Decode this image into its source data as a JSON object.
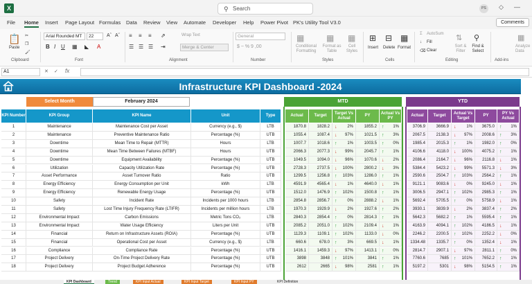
{
  "search": {
    "placeholder": "Search"
  },
  "user_initials": "PS",
  "menu": [
    "File",
    "Home",
    "Insert",
    "Page Layout",
    "Formulas",
    "Data",
    "Review",
    "View",
    "Automate",
    "Developer",
    "Help",
    "Power Pivot",
    "PK's Utility Tool V3.0"
  ],
  "comments_label": "Comments",
  "ribbon": {
    "font_name": "Arial Rounded MT",
    "font_size": "22",
    "number_format": "General",
    "wrap_text": "Wrap Text",
    "merge_center": "Merge & Center",
    "paste": "Paste",
    "autosum": "AutoSum",
    "fill": "Fill",
    "clear": "Clear",
    "sort_filter": "Sort & Filter",
    "find_select": "Find & Select",
    "insert": "Insert",
    "delete": "Delete",
    "format": "Format",
    "cond_format": "Conditional Formatting",
    "format_table": "Format as Table",
    "cell_styles": "Cell Styles",
    "analyze": "Analyze Data",
    "groups": [
      "Clipboard",
      "Font",
      "Alignment",
      "Number",
      "Styles",
      "Cells",
      "Editing",
      "Add-ins"
    ]
  },
  "name_box": "A1",
  "dashboard": {
    "title": "Infrastructure KPI Dashboard -2024",
    "select_month_label": "Select Month",
    "selected_month": "February 2024",
    "mtd_label": "MTD",
    "ytd_label": "YTD",
    "headers": {
      "kpi_number": "KPI Number",
      "kpi_group": "KPI Group",
      "kpi_name": "KPI Name",
      "unit": "Unit",
      "type": "Type",
      "actual": "Actual",
      "target": "Target",
      "target_vs_actual": "Target Vs Actual",
      "py": "PY",
      "actual_vs_py": "Actual Vs PY",
      "py_vs_actual": "PY Vs Actual"
    },
    "rows": [
      {
        "num": "1",
        "group": "Maintenance",
        "name": "Maintenance Cost per Asset",
        "unit": "Currency (e.g., $)",
        "type": "LTB",
        "m_actual": "1870.8",
        "m_target": "1828.2",
        "m_tva": "2%",
        "m_tva_dir": "down",
        "m_py": "1855.2",
        "m_avp": "1%",
        "m_avp_dir": "up",
        "y_actual": "3706.9",
        "y_target": "3666.9",
        "y_tva": "1%",
        "y_tva_dir": "down",
        "y_py": "3675.0",
        "y_pva": "1%",
        "y_pva_dir": "up"
      },
      {
        "num": "2",
        "group": "Maintenance",
        "name": "Preventive Maintenance Ratio",
        "unit": "Percentage (%)",
        "type": "UTB",
        "m_actual": "1055.4",
        "m_target": "1087.4",
        "m_tva": "97%",
        "m_tva_dir": "down",
        "m_py": "1021.5",
        "m_avp": "3%",
        "m_avp_dir": "up",
        "y_actual": "2067.5",
        "y_target": "2138.3",
        "y_tva": "97%",
        "y_tva_dir": "down",
        "y_py": "2008.6",
        "y_pva": "3%",
        "y_pva_dir": "up"
      },
      {
        "num": "3",
        "group": "Downtime",
        "name": "Mean Time to Repair (MTTR)",
        "unit": "Hours",
        "type": "LTB",
        "m_actual": "1007.7",
        "m_target": "1018.6",
        "m_tva": "1%",
        "m_tva_dir": "up",
        "m_py": "1003.5",
        "m_avp": "0%",
        "m_avp_dir": "up",
        "y_actual": "1985.4",
        "y_target": "2015.3",
        "y_tva": "1%",
        "y_tva_dir": "up",
        "y_py": "1982.0",
        "y_pva": "0%",
        "y_pva_dir": "up"
      },
      {
        "num": "4",
        "group": "Downtime",
        "name": "Mean Time Between Failures (MTBF)",
        "unit": "Hours",
        "type": "UTB",
        "m_actual": "2066.3",
        "m_target": "2077.3",
        "m_tva": "99%",
        "m_tva_dir": "down",
        "m_py": "2045.7",
        "m_avp": "1%",
        "m_avp_dir": "up",
        "y_actual": "4106.6",
        "y_target": "4118.0",
        "y_tva": "100%",
        "y_tva_dir": "down",
        "y_py": "4075.2",
        "y_pva": "1%",
        "y_pva_dir": "up"
      },
      {
        "num": "5",
        "group": "Downtime",
        "name": "Equipment Availability",
        "unit": "Percentage (%)",
        "type": "UTB",
        "m_actual": "1049.5",
        "m_target": "1094.0",
        "m_tva": "96%",
        "m_tva_dir": "down",
        "m_py": "1070.6",
        "m_avp": "2%",
        "m_avp_dir": "down",
        "y_actual": "2086.4",
        "y_target": "2164.7",
        "y_tva": "96%",
        "y_tva_dir": "down",
        "y_py": "2116.8",
        "y_pva": "1%",
        "y_pva_dir": "down"
      },
      {
        "num": "6",
        "group": "Utilization",
        "name": "Capacity Utilization Rate",
        "unit": "Percentage (%)",
        "type": "UTB",
        "m_actual": "2728.3",
        "m_target": "2737.5",
        "m_tva": "100%",
        "m_tva_dir": "down",
        "m_py": "2800.2",
        "m_avp": "3%",
        "m_avp_dir": "down",
        "y_actual": "5384.4",
        "y_target": "5423.2",
        "y_tva": "99%",
        "y_tva_dir": "down",
        "y_py": "5571.3",
        "y_pva": "3%",
        "y_pva_dir": "down"
      },
      {
        "num": "7",
        "group": "Asset Performance",
        "name": "Asset Turnover Ratio",
        "unit": "Ratio",
        "type": "UTB",
        "m_actual": "1299.5",
        "m_target": "1256.8",
        "m_tva": "103%",
        "m_tva_dir": "up",
        "m_py": "1286.0",
        "m_avp": "1%",
        "m_avp_dir": "up",
        "y_actual": "2590.6",
        "y_target": "2504.7",
        "y_tva": "103%",
        "y_tva_dir": "up",
        "y_py": "2564.2",
        "y_pva": "1%",
        "y_pva_dir": "up"
      },
      {
        "num": "8",
        "group": "Energy Efficiency",
        "name": "Energy Consumption per Unit",
        "unit": "kWh",
        "type": "LTB",
        "m_actual": "4591.9",
        "m_target": "4565.4",
        "m_tva": "1%",
        "m_tva_dir": "down",
        "m_py": "4640.0",
        "m_avp": "1%",
        "m_avp_dir": "down",
        "y_actual": "9121.1",
        "y_target": "9083.6",
        "y_tva": "0%",
        "y_tva_dir": "down",
        "y_py": "9245.0",
        "y_pva": "1%",
        "y_pva_dir": "down"
      },
      {
        "num": "9",
        "group": "Energy Efficiency",
        "name": "Renewable Energy Usage",
        "unit": "Percentage (%)",
        "type": "UTB",
        "m_actual": "1512.0",
        "m_target": "1476.9",
        "m_tva": "102%",
        "m_tva_dir": "up",
        "m_py": "1500.8",
        "m_avp": "1%",
        "m_avp_dir": "up",
        "y_actual": "3006.5",
        "y_target": "2947.1",
        "y_tva": "102%",
        "y_tva_dir": "up",
        "y_py": "2985.3",
        "y_pva": "1%",
        "y_pva_dir": "up"
      },
      {
        "num": "10",
        "group": "Safety",
        "name": "Incident Rate",
        "unit": "Incidents per 1000 hours",
        "type": "LTB",
        "m_actual": "2854.8",
        "m_target": "2856.7",
        "m_tva": "0%",
        "m_tva_dir": "up",
        "m_py": "2888.2",
        "m_avp": "1%",
        "m_avp_dir": "down",
        "y_actual": "5692.4",
        "y_target": "5705.5",
        "y_tva": "0%",
        "y_tva_dir": "up",
        "y_py": "5758.9",
        "y_pva": "1%",
        "y_pva_dir": "down"
      },
      {
        "num": "11",
        "group": "Safety",
        "name": "Lost Time Injury Frequency Rate (LTIFR)",
        "unit": "Incidents per million hours",
        "type": "LTB",
        "m_actual": "1970.3",
        "m_target": "1929.9",
        "m_tva": "2%",
        "m_tva_dir": "down",
        "m_py": "1927.6",
        "m_avp": "2%",
        "m_avp_dir": "up",
        "y_actual": "3930.1",
        "y_target": "3839.9",
        "y_tva": "2%",
        "y_tva_dir": "down",
        "y_py": "3837.4",
        "y_pva": "2%",
        "y_pva_dir": "up"
      },
      {
        "num": "12",
        "group": "Environmental Impact",
        "name": "Carbon Emissions",
        "unit": "Metric Tons CO₂",
        "type": "LTB",
        "m_actual": "2840.3",
        "m_target": "2854.4",
        "m_tva": "0%",
        "m_tva_dir": "up",
        "m_py": "2814.3",
        "m_avp": "1%",
        "m_avp_dir": "up",
        "y_actual": "5642.3",
        "y_target": "5682.2",
        "y_tva": "1%",
        "y_tva_dir": "up",
        "y_py": "5595.4",
        "y_pva": "1%",
        "y_pva_dir": "up"
      },
      {
        "num": "13",
        "group": "Environmental Impact",
        "name": "Water Usage Efficiency",
        "unit": "Liters per Unit",
        "type": "UTB",
        "m_actual": "2085.2",
        "m_target": "2051.0",
        "m_tva": "102%",
        "m_tva_dir": "up",
        "m_py": "2109.4",
        "m_avp": "1%",
        "m_avp_dir": "down",
        "y_actual": "4163.9",
        "y_target": "4094.1",
        "y_tva": "102%",
        "y_tva_dir": "up",
        "y_py": "4186.5",
        "y_pva": "1%",
        "y_pva_dir": "down"
      },
      {
        "num": "14",
        "group": "Financial",
        "name": "Return on Infrastructure Assets (ROIA)",
        "unit": "Percentage (%)",
        "type": "UTB",
        "m_actual": "1129.3",
        "m_target": "1109.1",
        "m_tva": "102%",
        "m_tva_dir": "up",
        "m_py": "1133.0",
        "m_avp": "0%",
        "m_avp_dir": "down",
        "y_actual": "2246.2",
        "y_target": "2200.5",
        "y_tva": "102%",
        "y_tva_dir": "up",
        "y_py": "2252.2",
        "y_pva": "0%",
        "y_pva_dir": "down"
      },
      {
        "num": "15",
        "group": "Financial",
        "name": "Operational Cost per Asset",
        "unit": "Currency (e.g., $)",
        "type": "LTB",
        "m_actual": "660.6",
        "m_target": "678.0",
        "m_tva": "3%",
        "m_tva_dir": "up",
        "m_py": "669.5",
        "m_avp": "1%",
        "m_avp_dir": "down",
        "y_actual": "1334.48",
        "y_target": "1335.7",
        "y_tva": "0%",
        "y_tva_dir": "up",
        "y_py": "1352.4",
        "y_pva": "1%",
        "y_pva_dir": "down"
      },
      {
        "num": "16",
        "group": "Compliance",
        "name": "Compliance Rate",
        "unit": "Percentage (%)",
        "type": "UTB",
        "m_actual": "1416.1",
        "m_target": "1459.3",
        "m_tva": "97%",
        "m_tva_dir": "down",
        "m_py": "1413.1",
        "m_avp": "0%",
        "m_avp_dir": "up",
        "y_actual": "2814.7",
        "y_target": "2907.1",
        "y_tva": "97%",
        "y_tva_dir": "down",
        "y_py": "2811.1",
        "y_pva": "0%",
        "y_pva_dir": "up"
      },
      {
        "num": "17",
        "group": "Project Delivery",
        "name": "On-Time Project Delivery Rate",
        "unit": "Percentage (%)",
        "type": "UTB",
        "m_actual": "3898",
        "m_target": "3848",
        "m_tva": "101%",
        "m_tva_dir": "up",
        "m_py": "3841",
        "m_avp": "1%",
        "m_avp_dir": "up",
        "y_actual": "7760.6",
        "y_target": "7685",
        "y_tva": "101%",
        "y_tva_dir": "up",
        "y_py": "7652.2",
        "y_pva": "1%",
        "y_pva_dir": "up"
      },
      {
        "num": "18",
        "group": "Project Delivery",
        "name": "Project Budget Adherence",
        "unit": "Percentage (%)",
        "type": "UTB",
        "m_actual": "2612",
        "m_target": "2665",
        "m_tva": "98%",
        "m_tva_dir": "down",
        "m_py": "2581",
        "m_avp": "1%",
        "m_avp_dir": "up",
        "y_actual": "5197.2",
        "y_target": "5301",
        "y_tva": "98%",
        "y_tva_dir": "down",
        "y_py": "5154.5",
        "y_pva": "1%",
        "y_pva_dir": "up"
      }
    ]
  },
  "sheet_tabs": [
    "KPI Dashboard",
    "Trend",
    "KPI Input Actual",
    "KPI Input Target",
    "KPI Input PY",
    "KPI Definition"
  ],
  "colors": {
    "banner": "#1a8cc0",
    "select_month": "#f08a3c",
    "mtd": "#4aa335",
    "ytd": "#7b3a8c",
    "header_blue": "#1597c9",
    "excel_green": "#1d6f42"
  }
}
